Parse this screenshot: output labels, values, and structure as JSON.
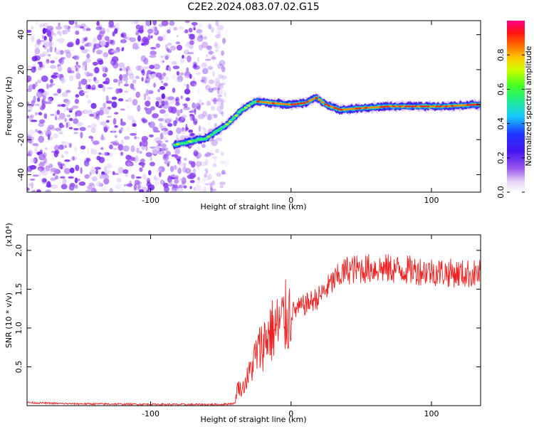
{
  "title": "C2E2.2024.083.07.02.G15",
  "chart_data": [
    {
      "type": "heatmap",
      "xlabel": "Height of straight line (km)",
      "ylabel": "Frequency (Hz)",
      "xlim": [
        -188,
        135
      ],
      "ylim": [
        -50,
        48
      ],
      "xticks": [
        -100,
        0,
        100
      ],
      "yticks": [
        -40,
        -20,
        0,
        20,
        40
      ],
      "colorbar": {
        "label": "Normalized spectral amplitude",
        "range": [
          0,
          1
        ],
        "ticks": [
          "0.0",
          "0.2",
          "0.4",
          "0.6",
          "0.8"
        ],
        "colormap": "rainbow: white-lavender-purple-blue-cyan-green-yellow-orange-red-magenta"
      },
      "ridge": {
        "description_points_x": [
          -83,
          -60,
          -45,
          -35,
          -25,
          -15,
          0,
          10,
          18,
          25,
          35,
          50,
          70,
          90,
          110,
          130
        ],
        "frequency_y": [
          -23,
          -19,
          -11,
          -3,
          2,
          1,
          0,
          1,
          4,
          0,
          -3,
          -2,
          -1,
          -1,
          -1,
          0
        ]
      },
      "noise_region_x": [
        -188,
        -52
      ]
    },
    {
      "type": "line",
      "xlabel": "Height of straight line (km)",
      "ylabel": "SNR (10 * v/v)",
      "y_multiplier": "(x10⁴)",
      "xlim": [
        -188,
        135
      ],
      "ylim": [
        0,
        22000
      ],
      "xticks": [
        -100,
        0,
        100
      ],
      "yticks": [
        5000,
        10000,
        15000,
        20000
      ],
      "ytick_labels": [
        "0.5",
        "1.0",
        "1.5",
        "2.0"
      ],
      "series": [
        {
          "color": "#ee2222",
          "x": [
            -188,
            -160,
            -120,
            -80,
            -50,
            -40,
            -38,
            -35,
            -30,
            -25,
            -20,
            -15,
            -10,
            -5,
            0,
            10,
            20,
            30,
            40,
            60,
            80,
            100,
            120,
            135
          ],
          "y": [
            400,
            250,
            200,
            150,
            150,
            300,
            2500,
            2000,
            4000,
            6500,
            8000,
            9500,
            10000,
            11000,
            12000,
            13000,
            14000,
            16000,
            17500,
            17700,
            17500,
            17300,
            17000,
            17000
          ]
        }
      ]
    }
  ]
}
